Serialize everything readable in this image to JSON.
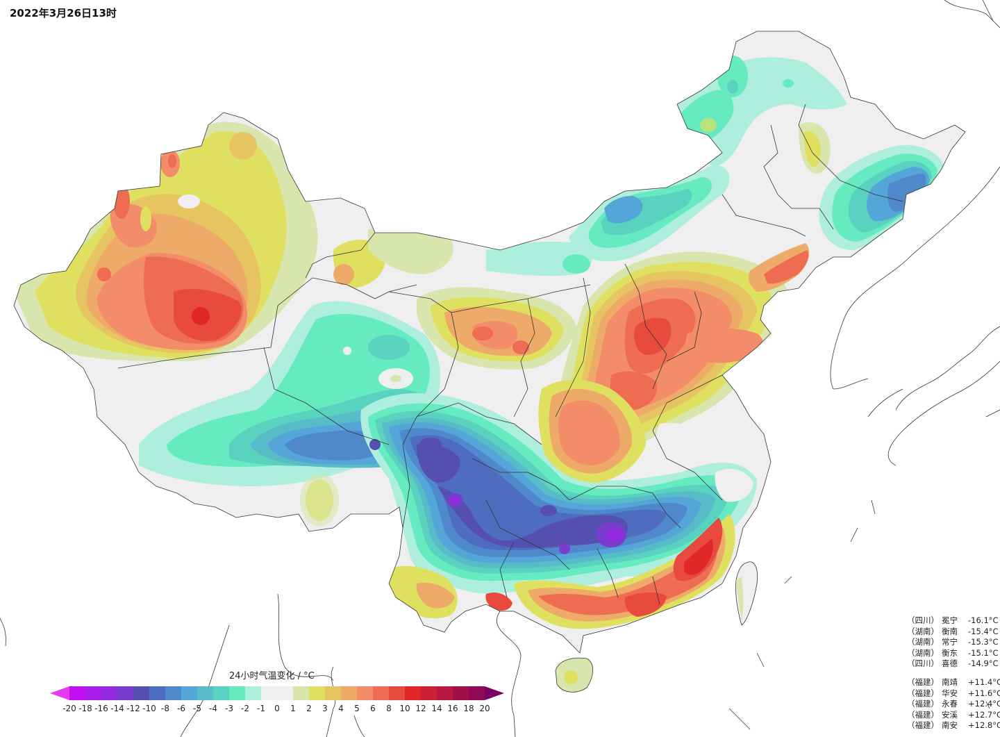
{
  "title": "2022年3月26日13时",
  "legend": {
    "title": "24小时气温变化 / °C",
    "ticks": [
      "-20",
      "-18",
      "-16",
      "-14",
      "-12",
      "-10",
      "-8",
      "-6",
      "-5",
      "-4",
      "-3",
      "-2",
      "-1",
      "0",
      "1",
      "2",
      "3",
      "4",
      "5",
      "6",
      "8",
      "10",
      "12",
      "14",
      "16",
      "18",
      "20"
    ],
    "under_color": "#e63af0",
    "over_color": "#780066",
    "colors": [
      "#c20ff0",
      "#a81ee8",
      "#942adf",
      "#7a3ccc",
      "#5550b0",
      "#4e6cc0",
      "#5088cc",
      "#55a6d8",
      "#58bcc8",
      "#5ad2c0",
      "#66eabf",
      "#aeeedc",
      "#efefef",
      "#efefef",
      "#d8e6ad",
      "#e0e060",
      "#e6c462",
      "#eeaa68",
      "#f38c68",
      "#ee6c52",
      "#e84a3e",
      "#e02828",
      "#cc2035",
      "#b81840",
      "#a01048",
      "#900a56"
    ]
  },
  "stations_cold": [
    {
      "prov": "（四川）",
      "name": "冕宁",
      "value": "-16.1°C"
    },
    {
      "prov": "（湖南）",
      "name": "衡南",
      "value": "-15.4°C"
    },
    {
      "prov": "（湖南）",
      "name": "常宁",
      "value": "-15.3°C"
    },
    {
      "prov": "（湖南）",
      "name": "衡东",
      "value": "-15.1°C"
    },
    {
      "prov": "（四川）",
      "name": "喜德",
      "value": "-14.9°C"
    }
  ],
  "stations_warm": [
    {
      "prov": "（福建）",
      "name": "南靖",
      "value": "+11.4°C"
    },
    {
      "prov": "（福建）",
      "name": "华安",
      "value": "+11.6°C"
    },
    {
      "prov": "（福建）",
      "name": "永春",
      "value": "+12.4°C"
    },
    {
      "prov": "（福建）",
      "name": "安溪",
      "value": "+12.7°C"
    },
    {
      "prov": "（福建）",
      "name": "南安",
      "value": "+12.8°C"
    }
  ],
  "map": {
    "background": "#ffffff",
    "land_base": "#efefef",
    "border_color": "#333333"
  }
}
